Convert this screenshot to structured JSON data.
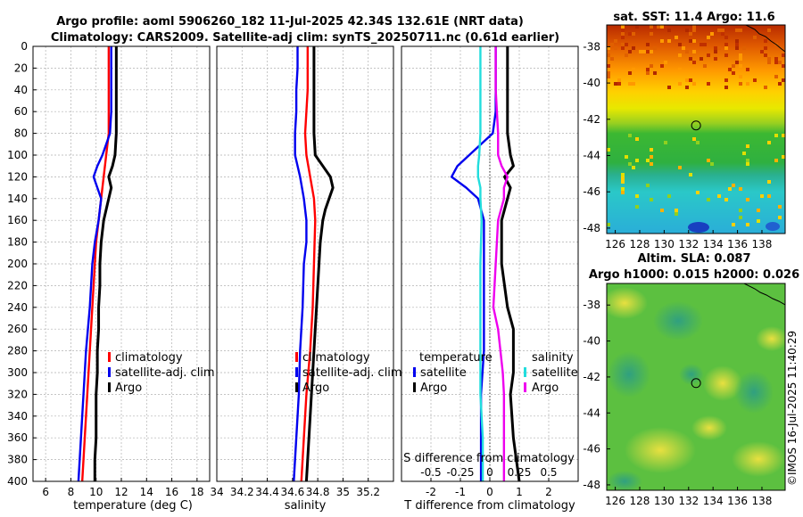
{
  "title": {
    "line1": "Argo profile: aoml 5906260_182 11-Jul-2025 42.34S 132.61E (NRT data)",
    "line2": "Climatology: CARS2009. Satellite-adj clim: synTS_20250711.nc (0.61d earlier)"
  },
  "colors": {
    "climatology": "#ff0000",
    "satellite": "#0000ee",
    "argo": "#000000",
    "salinity_satellite": "#22dddd",
    "salinity_argo": "#ee00ee"
  },
  "credit": "©IMOS 16-Jul-2025 11:40:29",
  "chart_data": [
    {
      "id": "temperature",
      "type": "line",
      "xlabel": "temperature (deg C)",
      "ylabel": "",
      "xlim": [
        5,
        19
      ],
      "ylim": [
        400,
        0
      ],
      "x_ticks": [
        6,
        8,
        10,
        12,
        14,
        16,
        18
      ],
      "y_ticks": [
        0,
        20,
        40,
        60,
        80,
        100,
        120,
        140,
        160,
        180,
        200,
        220,
        240,
        260,
        280,
        300,
        320,
        340,
        360,
        380,
        400
      ],
      "grid": true,
      "legend_position": "lower-right",
      "series": [
        {
          "name": "climatology",
          "color": "#ff0000",
          "depth": [
            0,
            20,
            40,
            60,
            80,
            100,
            120,
            140,
            160,
            180,
            200,
            240,
            280,
            320,
            360,
            400
          ],
          "values": [
            11.0,
            11.0,
            11.0,
            11.0,
            11.0,
            10.8,
            10.6,
            10.4,
            10.2,
            10.0,
            9.9,
            9.7,
            9.5,
            9.3,
            9.1,
            8.9
          ]
        },
        {
          "name": "satellite-adj. clim",
          "color": "#0000ee",
          "depth": [
            0,
            20,
            40,
            60,
            80,
            90,
            100,
            110,
            120,
            130,
            140,
            160,
            180,
            200,
            240,
            280,
            320,
            360,
            400
          ],
          "values": [
            11.2,
            11.2,
            11.2,
            11.2,
            11.1,
            10.8,
            10.5,
            10.1,
            9.8,
            10.1,
            10.4,
            10.2,
            9.9,
            9.7,
            9.5,
            9.2,
            9.0,
            8.8,
            8.6
          ]
        },
        {
          "name": "Argo",
          "color": "#000000",
          "depth": [
            0,
            20,
            40,
            60,
            80,
            100,
            110,
            120,
            130,
            140,
            150,
            160,
            170,
            180,
            200,
            220,
            240,
            260,
            280,
            300,
            320,
            340,
            360,
            380,
            400
          ],
          "values": [
            11.6,
            11.6,
            11.6,
            11.6,
            11.6,
            11.5,
            11.3,
            11.0,
            11.2,
            11.0,
            10.8,
            10.6,
            10.5,
            10.4,
            10.3,
            10.3,
            10.2,
            10.2,
            10.1,
            10.1,
            10.0,
            10.0,
            10.0,
            9.9,
            9.9
          ]
        }
      ]
    },
    {
      "id": "salinity",
      "type": "line",
      "xlabel": "salinity",
      "xlim": [
        34.0,
        35.4
      ],
      "ylim": [
        400,
        0
      ],
      "x_ticks": [
        34,
        34.2,
        34.4,
        34.6,
        34.8,
        35,
        35.2
      ],
      "x_tick_labels": [
        "34",
        "34.2",
        "34.4",
        "34.6",
        "34.8",
        "35",
        "35.2"
      ],
      "grid": true,
      "legend_position": "lower-right",
      "series": [
        {
          "name": "climatology",
          "color": "#ff0000",
          "depth": [
            0,
            20,
            40,
            60,
            80,
            100,
            120,
            140,
            160,
            200,
            240,
            280,
            320,
            360,
            400
          ],
          "values": [
            34.72,
            34.72,
            34.72,
            34.71,
            34.7,
            34.71,
            34.74,
            34.77,
            34.78,
            34.77,
            34.76,
            34.74,
            34.71,
            34.69,
            34.67
          ]
        },
        {
          "name": "satellite-adj. clim",
          "color": "#0000ee",
          "depth": [
            0,
            20,
            40,
            60,
            80,
            100,
            120,
            140,
            160,
            180,
            200,
            240,
            280,
            320,
            360,
            400
          ],
          "values": [
            34.64,
            34.64,
            34.63,
            34.63,
            34.62,
            34.62,
            34.66,
            34.69,
            34.71,
            34.71,
            34.69,
            34.68,
            34.66,
            34.65,
            34.63,
            34.61
          ]
        },
        {
          "name": "Argo",
          "color": "#000000",
          "depth": [
            0,
            20,
            40,
            60,
            80,
            100,
            110,
            120,
            130,
            140,
            150,
            160,
            180,
            200,
            240,
            280,
            300,
            320,
            360,
            400
          ],
          "values": [
            34.77,
            34.77,
            34.77,
            34.77,
            34.77,
            34.78,
            34.84,
            34.9,
            34.92,
            34.89,
            34.86,
            34.84,
            34.82,
            34.81,
            34.79,
            34.77,
            34.76,
            34.75,
            34.73,
            34.71
          ]
        }
      ]
    },
    {
      "id": "difference",
      "type": "line",
      "xlabel": "T difference from climatology",
      "top_label": "S difference from climatology",
      "xlim": [
        -3,
        3
      ],
      "ylim": [
        400,
        0
      ],
      "x_ticks": [
        -2,
        -1,
        0,
        1,
        2
      ],
      "x_tick_labels": [
        "-2",
        "-1",
        "0",
        "1",
        "2"
      ],
      "s_ticks": [
        -0.5,
        -0.25,
        0,
        0.25,
        0.5
      ],
      "s_tick_labels": [
        "-0.5",
        "-0.25",
        "0",
        "0.25",
        "0.5"
      ],
      "grid": true,
      "legend_temperature_title": "temperature",
      "legend_salinity_title": "salinity",
      "series": [
        {
          "name": "satellite",
          "group": "temperature",
          "color": "#0000ee",
          "depth": [
            0,
            20,
            40,
            60,
            80,
            90,
            100,
            110,
            120,
            130,
            140,
            160,
            200,
            280,
            320,
            360,
            400
          ],
          "values": [
            0.2,
            0.2,
            0.2,
            0.2,
            0.1,
            -0.3,
            -0.7,
            -1.1,
            -1.3,
            -0.8,
            -0.4,
            -0.2,
            -0.2,
            -0.2,
            -0.3,
            -0.3,
            -0.3
          ]
        },
        {
          "name": "Argo",
          "group": "temperature",
          "color": "#000000",
          "depth": [
            0,
            20,
            40,
            60,
            80,
            100,
            110,
            120,
            130,
            140,
            160,
            200,
            240,
            260,
            280,
            300,
            320,
            360,
            400
          ],
          "values": [
            0.6,
            0.6,
            0.6,
            0.6,
            0.6,
            0.7,
            0.8,
            0.5,
            0.7,
            0.6,
            0.4,
            0.4,
            0.6,
            0.8,
            0.8,
            0.8,
            0.7,
            0.8,
            1.0
          ]
        },
        {
          "name": "satellite",
          "group": "salinity",
          "color": "#22dddd",
          "depth": [
            0,
            20,
            40,
            60,
            80,
            100,
            110,
            120,
            130,
            140,
            160,
            200,
            240,
            280,
            320,
            360,
            400
          ],
          "values": [
            -0.08,
            -0.08,
            -0.08,
            -0.08,
            -0.08,
            -0.09,
            -0.1,
            -0.1,
            -0.08,
            -0.08,
            -0.07,
            -0.08,
            -0.08,
            -0.08,
            -0.08,
            -0.06,
            -0.06
          ]
        },
        {
          "name": "Argo",
          "group": "salinity",
          "color": "#ee00ee",
          "depth": [
            0,
            20,
            40,
            60,
            80,
            100,
            110,
            120,
            130,
            140,
            160,
            200,
            240,
            260,
            280,
            300,
            320,
            360,
            400
          ],
          "values": [
            0.05,
            0.05,
            0.05,
            0.06,
            0.07,
            0.07,
            0.1,
            0.15,
            0.12,
            0.12,
            0.07,
            0.05,
            0.03,
            0.07,
            0.09,
            0.11,
            0.12,
            0.12,
            0.12
          ]
        }
      ]
    },
    {
      "id": "sst-map",
      "type": "heatmap",
      "title": "sat. SST: 11.4 Argo: 11.6",
      "x_ticks": [
        126,
        128,
        130,
        132,
        134,
        136,
        138
      ],
      "x_tick_labels": [
        "126",
        "128",
        "130",
        "132",
        "134",
        "136",
        "138"
      ],
      "y_ticks": [
        -38,
        -40,
        -42,
        -44,
        -46,
        -48
      ],
      "y_tick_labels": [
        "-38",
        "-40",
        "-42",
        "-44",
        "-46",
        "-48"
      ],
      "xlim": [
        125.3,
        139.9
      ],
      "ylim": [
        -48.3,
        -36.8
      ],
      "marker": {
        "lon": 132.61,
        "lat": -42.34
      }
    },
    {
      "id": "sla-map",
      "type": "heatmap",
      "title_line1": "Altim. SLA: 0.087",
      "title_line2": "Argo h1000: 0.015 h2000: 0.026",
      "x_ticks": [
        126,
        128,
        130,
        132,
        134,
        136,
        138
      ],
      "x_tick_labels": [
        "126",
        "128",
        "130",
        "132",
        "134",
        "136",
        "138"
      ],
      "y_ticks": [
        -38,
        -40,
        -42,
        -44,
        -46,
        -48
      ],
      "y_tick_labels": [
        "-38",
        "-40",
        "-42",
        "-44",
        "-46",
        "-48"
      ],
      "xlim": [
        125.3,
        139.9
      ],
      "ylim": [
        -48.3,
        -36.8
      ],
      "marker": {
        "lon": 132.61,
        "lat": -42.34
      }
    }
  ]
}
